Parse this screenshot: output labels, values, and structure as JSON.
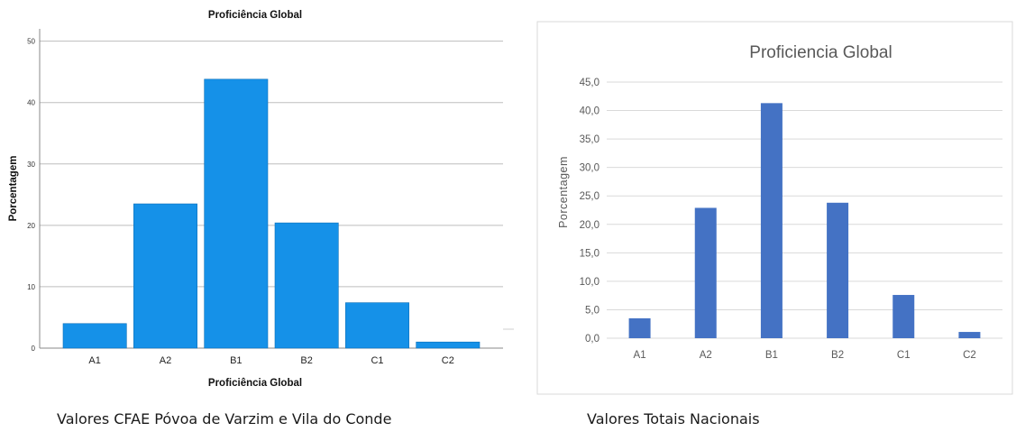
{
  "chart_data": [
    {
      "type": "bar",
      "title": "Proficiência Global",
      "xlabel": "Proficiência Global",
      "ylabel": "Porcentagem",
      "categories": [
        "A1",
        "A2",
        "B1",
        "B2",
        "C1",
        "C2"
      ],
      "values": [
        4.0,
        23.5,
        43.8,
        20.4,
        7.4,
        1.0
      ],
      "ylim": [
        0,
        52
      ],
      "yticks": [
        "0",
        "10",
        "20",
        "30",
        "40",
        "50"
      ],
      "grid": true,
      "legend": "none",
      "bar_color": "#1591e8"
    },
    {
      "type": "bar",
      "title": "Proficiencia Global",
      "xlabel": "",
      "ylabel": "Porcentagem",
      "categories": [
        "A1",
        "A2",
        "B1",
        "B2",
        "C1",
        "C2"
      ],
      "values": [
        3.5,
        22.9,
        41.3,
        23.8,
        7.6,
        1.1
      ],
      "ylim": [
        0,
        45
      ],
      "yticks": [
        "0,0",
        "5,0",
        "10,0",
        "15,0",
        "20,0",
        "25,0",
        "30,0",
        "35,0",
        "40,0",
        "45,0"
      ],
      "grid": true,
      "legend": "none",
      "bar_color": "#4472c4"
    }
  ],
  "captions": {
    "left": "Valores CFAE Póvoa de Varzim e Vila do Conde",
    "right": "Valores Totais Nacionais"
  }
}
